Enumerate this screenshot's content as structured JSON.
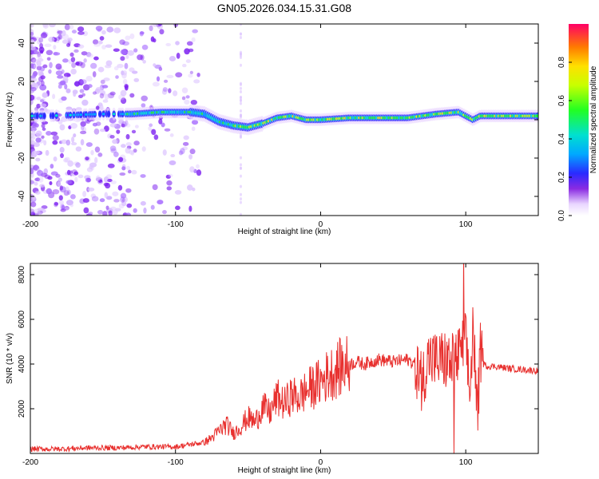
{
  "title": "GN05.2026.034.15.31.G08",
  "chart_data": [
    {
      "type": "heatmap",
      "xlabel": "Height of straight line (km)",
      "ylabel": "Frequency (Hz)",
      "xlim": [
        -200,
        150
      ],
      "ylim": [
        -50,
        50
      ],
      "xticks": [
        -200,
        -100,
        0,
        100
      ],
      "yticks": [
        -40,
        -20,
        0,
        20,
        40
      ],
      "colorbar": {
        "label": "Normalized spectral amplitude",
        "range": [
          0,
          1
        ],
        "ticks": [
          "0.0",
          "0.2",
          "0.4",
          "0.6",
          "0.8"
        ]
      },
      "ridge": {
        "x": [
          -200,
          -190,
          -150,
          -130,
          -110,
          -90,
          -80,
          -70,
          -60,
          -50,
          -40,
          -30,
          -20,
          -10,
          0,
          20,
          40,
          60,
          80,
          95,
          105,
          110,
          150
        ],
        "y": [
          2,
          2,
          3,
          3,
          4,
          4,
          3,
          -1,
          -3,
          -4,
          -2,
          1,
          2,
          0,
          0,
          1,
          1,
          1,
          3,
          4,
          0,
          2,
          2
        ]
      }
    },
    {
      "type": "line",
      "xlabel": "Height of straight line (km)",
      "ylabel": "SNR (10 * v/v)",
      "xlim": [
        -200,
        150
      ],
      "ylim": [
        0,
        8500
      ],
      "xticks": [
        -200,
        -100,
        0,
        100
      ],
      "yticks": [
        2000,
        4000,
        6000,
        8000
      ],
      "series": [
        {
          "name": "SNR",
          "color": "#e8302e",
          "x": [
            -200,
            -180,
            -160,
            -140,
            -120,
            -100,
            -90,
            -80,
            -75,
            -70,
            -65,
            -60,
            -55,
            -50,
            -45,
            -40,
            -35,
            -30,
            -25,
            -20,
            -15,
            -10,
            -5,
            0,
            5,
            10,
            15,
            20,
            25,
            30,
            40,
            50,
            60,
            65,
            70,
            72,
            75,
            80,
            85,
            90,
            95,
            100,
            103,
            105,
            108,
            110,
            112,
            115,
            120,
            130,
            140,
            150
          ],
          "y": [
            200,
            200,
            250,
            250,
            300,
            300,
            400,
            500,
            700,
            1000,
            1300,
            900,
            1200,
            1600,
            1400,
            2100,
            1800,
            2500,
            2200,
            2600,
            2500,
            2800,
            3000,
            3200,
            3500,
            3700,
            3900,
            4000,
            4100,
            4000,
            4200,
            4100,
            4200,
            4000,
            3200,
            3800,
            4300,
            4100,
            4200,
            4000,
            4300,
            5000,
            2500,
            6000,
            1500,
            4500,
            4000,
            3900,
            3900,
            3800,
            3750,
            3700
          ]
        }
      ]
    }
  ]
}
